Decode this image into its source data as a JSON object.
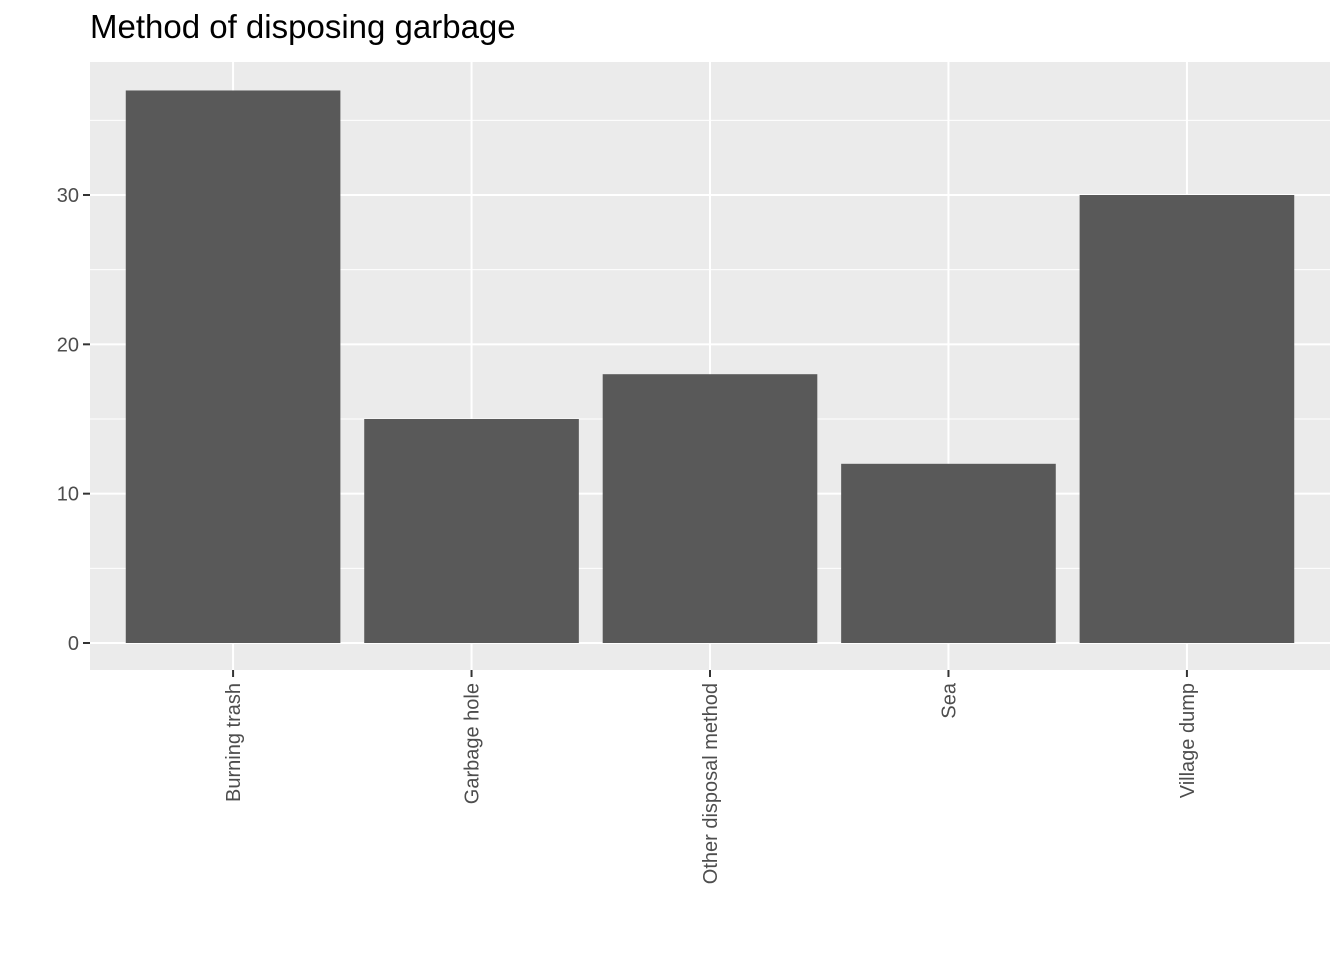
{
  "chart_data": {
    "type": "bar",
    "title": "Method of disposing garbage",
    "xlabel": "",
    "ylabel": "",
    "categories": [
      "Burning trash",
      "Garbage hole",
      "Other disposal method",
      "Sea",
      "Village dump"
    ],
    "values": [
      37,
      15,
      18,
      12,
      30
    ],
    "ylim": [
      0,
      38.85
    ],
    "yticks": [
      0,
      10,
      20,
      30
    ],
    "grid": true,
    "bar_color": "#595959",
    "panel_background": "#ebebeb",
    "grid_color": "#ffffff"
  }
}
